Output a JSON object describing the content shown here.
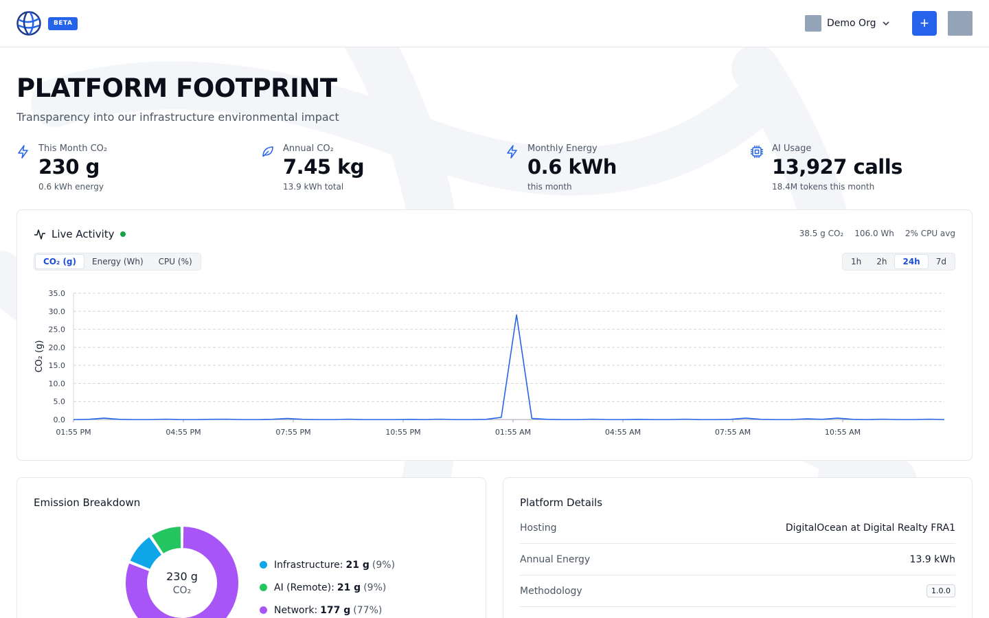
{
  "header": {
    "badge": "BETA",
    "org_name": "Demo Org",
    "add_label": "+"
  },
  "page": {
    "title": "PLATFORM FOOTPRINT",
    "subtitle": "Transparency into our infrastructure environmental impact"
  },
  "stats": [
    {
      "label": "This Month CO₂",
      "value": "230 g",
      "note": "0.6 kWh energy",
      "icon": "bolt-icon"
    },
    {
      "label": "Annual CO₂",
      "value": "7.45 kg",
      "note": "13.9 kWh total",
      "icon": "leaf-icon"
    },
    {
      "label": "Monthly Energy",
      "value": "0.6 kWh",
      "note": "this month",
      "icon": "bolt-icon"
    },
    {
      "label": "AI Usage",
      "value": "13,927 calls",
      "note": "18.4M tokens this month",
      "icon": "chip-icon"
    }
  ],
  "live": {
    "title": "Live Activity",
    "metrics": [
      "38.5 g CO₂",
      "106.0 Wh",
      "2% CPU avg"
    ],
    "metric_tabs": [
      "CO₂ (g)",
      "Energy (Wh)",
      "CPU (%)"
    ],
    "active_metric": 0,
    "range_tabs": [
      "1h",
      "2h",
      "24h",
      "7d"
    ],
    "active_range": 2
  },
  "chart_data": {
    "type": "line",
    "ylabel": "CO₂ (g)",
    "ylim": [
      0,
      35
    ],
    "yticks": [
      "35.0",
      "30.0",
      "25.0",
      "20.0",
      "15.0",
      "10.0",
      "5.0",
      "0.0"
    ],
    "xticks": [
      "01:55 PM",
      "04:55 PM",
      "07:55 PM",
      "10:55 PM",
      "01:55 AM",
      "04:55 AM",
      "07:55 AM",
      "10:55 AM"
    ],
    "grid": true,
    "color": "#2563eb",
    "series": [
      {
        "values": [
          0,
          0.05,
          0.4,
          0.05,
          0,
          0,
          0.1,
          0,
          0,
          0.05,
          0.1,
          0,
          0,
          0.05,
          0.3,
          0.05,
          0,
          0,
          0.1,
          0,
          0,
          0,
          0.05,
          0,
          0.1,
          0,
          0,
          0.05,
          0.6,
          29,
          0.3,
          0.05,
          0,
          0,
          0.1,
          0,
          0,
          0.05,
          0,
          0,
          0.1,
          0,
          0,
          0.05,
          0.4,
          0.05,
          0,
          0,
          0.2,
          0.05,
          0.4,
          0.05,
          0,
          0.1,
          0,
          0,
          0.1,
          0
        ]
      }
    ]
  },
  "breakdown": {
    "title": "Emission Breakdown",
    "center_value": "230 g",
    "center_unit": "CO₂",
    "items": [
      {
        "label": "Infrastructure:",
        "value": "21 g",
        "pct": "(9%)",
        "color": "#0ea5e9"
      },
      {
        "label": "AI (Remote):",
        "value": "21 g",
        "pct": "(9%)",
        "color": "#22c55e"
      },
      {
        "label": "Network:",
        "value": "177 g",
        "pct": "(77%)",
        "color": "#a855f7"
      }
    ],
    "shares": [
      0.09,
      0.09,
      0.77
    ]
  },
  "details": {
    "title": "Platform Details",
    "rows": [
      {
        "key": "Hosting",
        "value": "DigitalOcean at Digital Realty FRA1"
      },
      {
        "key": "Annual Energy",
        "value": "13.9 kWh"
      },
      {
        "key": "Methodology",
        "value": "1.0.0"
      }
    ]
  }
}
